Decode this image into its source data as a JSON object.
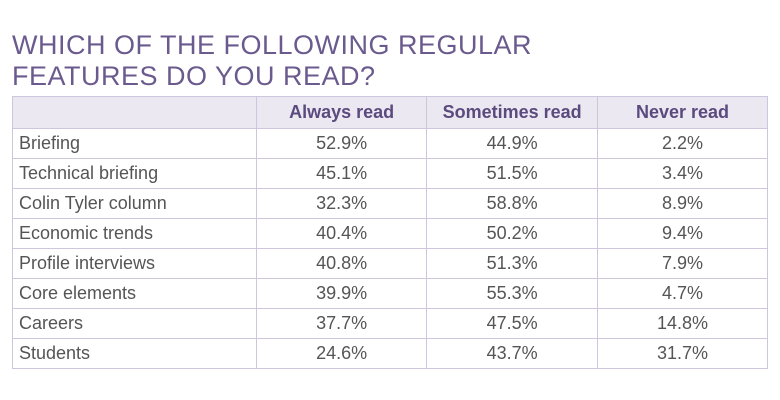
{
  "title_lines": [
    "WHICH OF THE FOLLOWING REGULAR",
    "FEATURES DO YOU READ?"
  ],
  "table": {
    "columns": [
      "Always read",
      "Sometimes read",
      "Never read"
    ],
    "rows": [
      {
        "label": "Briefing",
        "cells": [
          "52.9%",
          "44.9%",
          "2.2%"
        ]
      },
      {
        "label": "Technical briefing",
        "cells": [
          "45.1%",
          "51.5%",
          "3.4%"
        ]
      },
      {
        "label": "Colin Tyler column",
        "cells": [
          "32.3%",
          "58.8%",
          "8.9%"
        ]
      },
      {
        "label": "Economic trends",
        "cells": [
          "40.4%",
          "50.2%",
          "9.4%"
        ]
      },
      {
        "label": "Profile interviews",
        "cells": [
          "40.8%",
          "51.3%",
          "7.9%"
        ]
      },
      {
        "label": "Core elements",
        "cells": [
          "39.9%",
          "55.3%",
          "4.7%"
        ]
      },
      {
        "label": "Careers",
        "cells": [
          "37.7%",
          "47.5%",
          "14.8%"
        ]
      },
      {
        "label": "Students",
        "cells": [
          "24.6%",
          "43.7%",
          "31.7%"
        ]
      }
    ]
  }
}
